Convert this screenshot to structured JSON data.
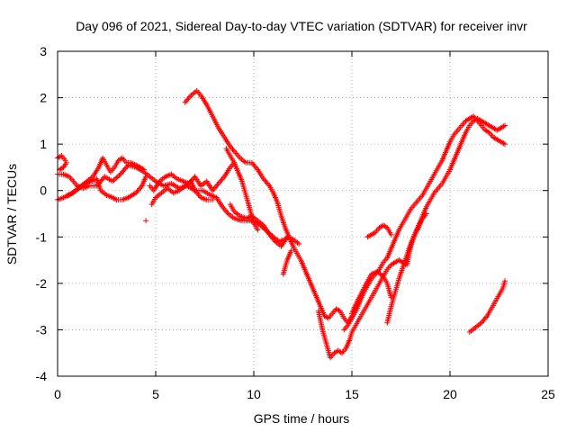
{
  "chart_data": {
    "type": "scatter",
    "title": "Day 096 of 2021, Sidereal Day-to-day VTEC variation (SDTVAR) for receiver invr",
    "xlabel": "GPS time / hours",
    "ylabel": "SDTVAR / TECUs",
    "xlim": [
      0,
      25
    ],
    "ylim": [
      -4,
      3
    ],
    "xticks": [
      0,
      5,
      10,
      15,
      20,
      25
    ],
    "yticks": [
      -4,
      -3,
      -2,
      -1,
      0,
      1,
      2,
      3
    ],
    "grid": true,
    "marker": "+",
    "color": "#ff0000",
    "series": [
      {
        "values": [
          [
            0.0,
            0.7
          ],
          [
            0.2,
            0.75
          ],
          [
            0.4,
            0.65
          ],
          [
            0.45,
            0.6
          ],
          [
            0.3,
            0.5
          ],
          [
            0.1,
            0.45
          ]
        ]
      },
      {
        "values": [
          [
            0.0,
            0.35
          ],
          [
            0.3,
            0.35
          ],
          [
            0.6,
            0.3
          ],
          [
            0.8,
            0.2
          ],
          [
            1.0,
            0.1
          ],
          [
            1.3,
            0.05
          ],
          [
            1.6,
            0.1
          ],
          [
            2.0,
            0.1
          ],
          [
            2.4,
            0.3
          ],
          [
            2.8,
            0.2
          ],
          [
            3.2,
            0.35
          ],
          [
            3.6,
            0.55
          ],
          [
            4.0,
            0.5
          ],
          [
            4.4,
            0.4
          ],
          [
            4.7,
            0.3
          ],
          [
            5.0,
            0.2
          ],
          [
            5.4,
            0.1
          ],
          [
            5.8,
            0.15
          ],
          [
            6.2,
            0.05
          ],
          [
            6.6,
            0.1
          ],
          [
            7.0,
            0.0
          ],
          [
            7.4,
            0.0
          ],
          [
            7.8,
            -0.1
          ],
          [
            8.1,
            -0.15
          ],
          [
            8.4,
            -0.35
          ],
          [
            8.7,
            -0.5
          ],
          [
            9.0,
            -0.6
          ],
          [
            9.4,
            -0.65
          ],
          [
            9.8,
            -0.65
          ],
          [
            10.2,
            -0.7
          ],
          [
            10.6,
            -0.85
          ],
          [
            11.0,
            -1.0
          ],
          [
            11.3,
            -1.1
          ],
          [
            11.6,
            -1.05
          ]
        ]
      },
      {
        "values": [
          [
            0.0,
            -0.2
          ],
          [
            0.3,
            -0.15
          ],
          [
            0.6,
            -0.1
          ],
          [
            0.9,
            0.0
          ],
          [
            1.2,
            0.1
          ],
          [
            1.5,
            0.2
          ],
          [
            1.8,
            0.3
          ],
          [
            2.1,
            0.5
          ],
          [
            2.3,
            0.7
          ],
          [
            2.5,
            0.55
          ],
          [
            2.7,
            0.4
          ],
          [
            2.9,
            0.5
          ],
          [
            3.1,
            0.65
          ],
          [
            3.3,
            0.7
          ],
          [
            3.5,
            0.6
          ],
          [
            3.7,
            0.6
          ],
          [
            4.0,
            0.55
          ],
          [
            4.2,
            0.5
          ],
          [
            4.4,
            0.45
          ]
        ]
      },
      {
        "values": [
          [
            0.5,
            -0.1
          ],
          [
            0.8,
            -0.05
          ],
          [
            1.1,
            0.05
          ],
          [
            1.4,
            0.15
          ],
          [
            1.7,
            0.2
          ],
          [
            2.0,
            0.25
          ],
          [
            2.2,
            0.0
          ],
          [
            2.5,
            -0.1
          ],
          [
            2.8,
            -0.15
          ],
          [
            3.0,
            -0.2
          ],
          [
            3.3,
            -0.2
          ],
          [
            3.6,
            -0.15
          ],
          [
            3.8,
            -0.1
          ],
          [
            4.0,
            -0.05
          ],
          [
            4.3,
            0.1
          ],
          [
            4.5,
            0.3
          ]
        ]
      },
      {
        "values": [
          [
            4.5,
            -0.65
          ]
        ]
      },
      {
        "values": [
          [
            4.8,
            -0.3
          ],
          [
            5.0,
            -0.15
          ],
          [
            5.3,
            -0.05
          ],
          [
            5.6,
            0.05
          ],
          [
            5.9,
            -0.05
          ],
          [
            6.2,
            0.0
          ],
          [
            6.5,
            0.1
          ],
          [
            6.8,
            0.2
          ],
          [
            7.0,
            0.0
          ],
          [
            7.3,
            -0.15
          ],
          [
            7.6,
            -0.2
          ],
          [
            7.9,
            -0.2
          ]
        ]
      },
      {
        "values": [
          [
            4.7,
            0.1
          ],
          [
            4.9,
            0.0
          ],
          [
            5.2,
            0.2
          ],
          [
            5.5,
            0.3
          ],
          [
            5.8,
            0.35
          ],
          [
            6.1,
            0.25
          ],
          [
            6.4,
            0.2
          ],
          [
            6.7,
            0.15
          ],
          [
            7.0,
            0.3
          ],
          [
            7.3,
            0.1
          ],
          [
            7.6,
            0.2
          ],
          [
            7.9,
            0.0
          ],
          [
            8.2,
            0.15
          ],
          [
            8.5,
            0.3
          ],
          [
            8.8,
            0.5
          ],
          [
            9.0,
            0.6
          ]
        ]
      },
      {
        "values": [
          [
            6.5,
            1.9
          ],
          [
            6.8,
            2.05
          ],
          [
            7.1,
            2.15
          ],
          [
            7.3,
            2.05
          ],
          [
            7.6,
            1.85
          ],
          [
            7.9,
            1.6
          ],
          [
            8.2,
            1.35
          ],
          [
            8.5,
            1.15
          ],
          [
            8.8,
            0.95
          ],
          [
            9.1,
            0.8
          ],
          [
            9.3,
            0.7
          ],
          [
            9.6,
            0.6
          ],
          [
            9.9,
            0.6
          ],
          [
            10.2,
            0.45
          ],
          [
            10.5,
            0.25
          ],
          [
            10.8,
            0.1
          ],
          [
            11.0,
            -0.05
          ],
          [
            11.2,
            -0.25
          ],
          [
            11.4,
            -0.55
          ],
          [
            11.6,
            -0.8
          ],
          [
            11.8,
            -1.0
          ],
          [
            12.0,
            -1.2
          ],
          [
            12.2,
            -1.35
          ],
          [
            12.4,
            -1.5
          ],
          [
            12.6,
            -1.7
          ],
          [
            12.8,
            -1.9
          ],
          [
            13.0,
            -2.1
          ],
          [
            13.2,
            -2.3
          ],
          [
            13.4,
            -2.5
          ],
          [
            13.6,
            -2.7
          ],
          [
            13.8,
            -2.75
          ],
          [
            14.0,
            -2.65
          ],
          [
            14.2,
            -2.55
          ],
          [
            14.4,
            -2.6
          ],
          [
            14.6,
            -2.75
          ],
          [
            14.8,
            -2.85
          ],
          [
            15.0,
            -2.7
          ]
        ]
      },
      {
        "values": [
          [
            8.8,
            -0.3
          ],
          [
            9.0,
            -0.45
          ],
          [
            9.3,
            -0.55
          ],
          [
            9.6,
            -0.6
          ],
          [
            9.9,
            -0.55
          ],
          [
            10.2,
            -0.65
          ],
          [
            10.5,
            -0.75
          ],
          [
            10.8,
            -0.95
          ],
          [
            11.1,
            -1.1
          ],
          [
            11.4,
            -1.2
          ],
          [
            11.7,
            -1.0
          ],
          [
            12.0,
            -1.05
          ],
          [
            12.3,
            -1.15
          ]
        ]
      },
      {
        "values": [
          [
            8.6,
            0.9
          ],
          [
            8.8,
            0.75
          ],
          [
            9.0,
            0.6
          ],
          [
            9.2,
            0.4
          ],
          [
            9.4,
            0.2
          ],
          [
            9.6,
            -0.1
          ],
          [
            9.8,
            -0.4
          ],
          [
            10.0,
            -0.7
          ],
          [
            10.2,
            -0.85
          ]
        ]
      },
      {
        "values": [
          [
            11.5,
            -1.8
          ],
          [
            11.7,
            -1.5
          ],
          [
            11.9,
            -1.3
          ]
        ]
      },
      {
        "values": [
          [
            13.3,
            -2.6
          ],
          [
            13.5,
            -3.0
          ],
          [
            13.7,
            -3.3
          ],
          [
            13.9,
            -3.6
          ],
          [
            14.1,
            -3.5
          ],
          [
            14.3,
            -3.45
          ],
          [
            14.5,
            -3.5
          ],
          [
            14.7,
            -3.4
          ],
          [
            14.9,
            -3.2
          ],
          [
            15.0,
            -3.05
          ],
          [
            15.2,
            -2.9
          ],
          [
            15.4,
            -2.75
          ],
          [
            15.6,
            -2.6
          ],
          [
            15.8,
            -2.45
          ],
          [
            16.0,
            -2.3
          ],
          [
            16.2,
            -2.15
          ],
          [
            16.4,
            -2.0
          ],
          [
            16.6,
            -1.85
          ],
          [
            16.8,
            -1.7
          ],
          [
            17.0,
            -1.6
          ],
          [
            17.2,
            -1.55
          ],
          [
            17.4,
            -1.5
          ],
          [
            17.6,
            -1.55
          ],
          [
            17.8,
            -1.6
          ],
          [
            18.0,
            -1.2
          ],
          [
            18.2,
            -0.95
          ],
          [
            18.4,
            -0.8
          ],
          [
            18.6,
            -0.55
          ],
          [
            18.8,
            -0.35
          ],
          [
            19.0,
            -0.2
          ],
          [
            19.2,
            -0.05
          ],
          [
            19.4,
            0.05
          ],
          [
            19.6,
            0.15
          ],
          [
            19.8,
            0.3
          ],
          [
            20.0,
            0.45
          ],
          [
            20.2,
            0.65
          ],
          [
            20.4,
            0.85
          ],
          [
            20.6,
            1.05
          ],
          [
            20.8,
            1.25
          ],
          [
            21.0,
            1.4
          ],
          [
            21.2,
            1.5
          ],
          [
            21.4,
            1.55
          ],
          [
            21.6,
            1.5
          ],
          [
            21.8,
            1.45
          ],
          [
            22.0,
            1.4
          ],
          [
            22.2,
            1.35
          ],
          [
            22.4,
            1.3
          ],
          [
            22.6,
            1.35
          ],
          [
            22.8,
            1.4
          ]
        ]
      },
      {
        "values": [
          [
            14.6,
            -3.0
          ],
          [
            14.8,
            -2.9
          ],
          [
            15.0,
            -2.75
          ],
          [
            15.2,
            -2.6
          ],
          [
            15.4,
            -2.4
          ],
          [
            15.6,
            -2.2
          ],
          [
            15.8,
            -2.05
          ],
          [
            16.0,
            -1.9
          ],
          [
            16.2,
            -1.8
          ],
          [
            16.4,
            -1.7
          ],
          [
            16.6,
            -1.55
          ],
          [
            16.8,
            -1.45
          ],
          [
            17.0,
            -1.25
          ],
          [
            17.2,
            -1.05
          ],
          [
            17.4,
            -0.85
          ],
          [
            17.6,
            -0.7
          ],
          [
            17.8,
            -0.55
          ],
          [
            18.0,
            -0.4
          ],
          [
            18.2,
            -0.3
          ],
          [
            18.4,
            -0.2
          ],
          [
            18.6,
            -0.1
          ],
          [
            18.8,
            0.05
          ],
          [
            19.0,
            0.2
          ],
          [
            19.2,
            0.35
          ],
          [
            19.4,
            0.5
          ],
          [
            19.6,
            0.65
          ],
          [
            19.8,
            0.85
          ],
          [
            20.0,
            1.05
          ],
          [
            20.2,
            1.2
          ],
          [
            20.4,
            1.3
          ],
          [
            20.6,
            1.4
          ],
          [
            20.8,
            1.5
          ],
          [
            21.0,
            1.55
          ],
          [
            21.2,
            1.6
          ],
          [
            21.4,
            1.5
          ],
          [
            21.6,
            1.4
          ],
          [
            21.8,
            1.3
          ],
          [
            22.0,
            1.25
          ],
          [
            22.2,
            1.15
          ],
          [
            22.4,
            1.1
          ],
          [
            22.6,
            1.05
          ],
          [
            22.8,
            1.0
          ]
        ]
      },
      {
        "values": [
          [
            16.8,
            -2.85
          ],
          [
            17.0,
            -2.5
          ],
          [
            17.2,
            -2.2
          ],
          [
            17.4,
            -1.9
          ],
          [
            17.6,
            -1.65
          ],
          [
            17.8,
            -1.4
          ],
          [
            18.0,
            -1.15
          ],
          [
            18.2,
            -0.95
          ],
          [
            18.4,
            -0.75
          ],
          [
            18.6,
            -0.6
          ],
          [
            18.8,
            -0.5
          ]
        ]
      },
      {
        "values": [
          [
            15.8,
            -1.0
          ],
          [
            16.0,
            -0.95
          ],
          [
            16.2,
            -0.9
          ],
          [
            16.4,
            -0.8
          ],
          [
            16.6,
            -0.75
          ],
          [
            16.8,
            -0.8
          ],
          [
            17.0,
            -0.95
          ]
        ]
      },
      {
        "values": [
          [
            15.0,
            -2.65
          ],
          [
            15.2,
            -2.45
          ],
          [
            15.5,
            -2.2
          ],
          [
            15.8,
            -1.95
          ],
          [
            16.0,
            -1.8
          ],
          [
            16.3,
            -1.75
          ],
          [
            16.6,
            -1.85
          ],
          [
            16.8,
            -2.0
          ],
          [
            17.0,
            -2.3
          ]
        ]
      },
      {
        "values": [
          [
            21.0,
            -3.05
          ],
          [
            21.3,
            -2.95
          ],
          [
            21.6,
            -2.85
          ],
          [
            21.9,
            -2.7
          ],
          [
            22.1,
            -2.55
          ],
          [
            22.3,
            -2.4
          ],
          [
            22.5,
            -2.25
          ],
          [
            22.7,
            -2.1
          ],
          [
            22.8,
            -1.95
          ]
        ]
      }
    ]
  }
}
